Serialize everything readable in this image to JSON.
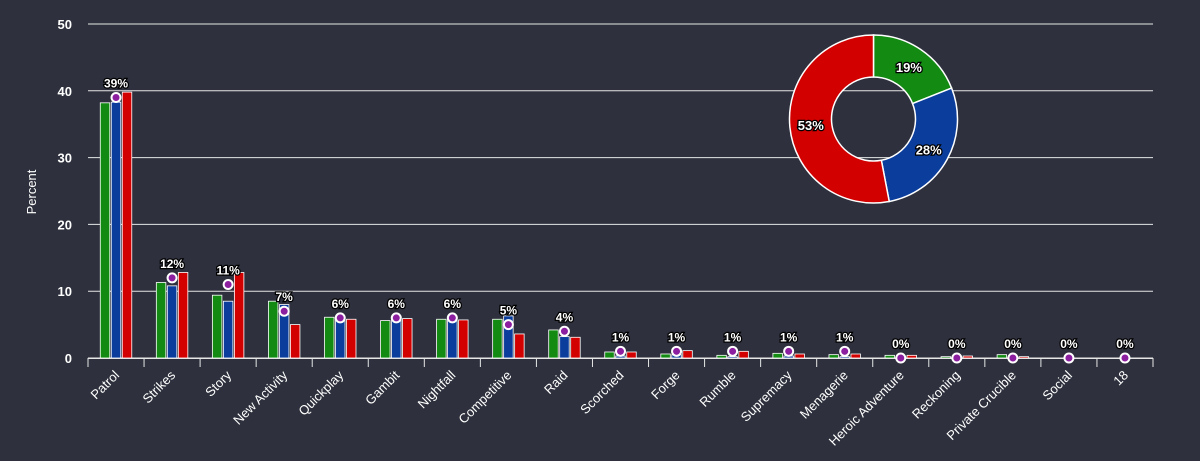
{
  "chart_data": {
    "type": "bar",
    "ylabel": "Percent",
    "ylim": [
      0,
      50
    ],
    "yticks": [
      "0",
      "10",
      "20",
      "30",
      "40",
      "50"
    ],
    "categories": [
      "Patrol",
      "Strikes",
      "Story",
      "New Activity",
      "Quickplay",
      "Gambit",
      "Nightfall",
      "Competitive",
      "Raid",
      "Scorched",
      "Forge",
      "Rumble",
      "Supremacy",
      "Menagerie",
      "Heroic Adventure",
      "Reckoning",
      "Private Crucible",
      "Social",
      "18"
    ],
    "series": [
      {
        "name": "green",
        "color": "#138b13",
        "values": [
          38.2,
          11.3,
          9.4,
          8.5,
          6.1,
          5.6,
          5.8,
          5.8,
          4.2,
          0.9,
          0.6,
          0.4,
          0.7,
          0.5,
          0.4,
          0.2,
          0.5,
          0,
          0
        ]
      },
      {
        "name": "blue",
        "color": "#0a3d9c",
        "values": [
          38.3,
          10.8,
          8.5,
          8.0,
          6.0,
          5.7,
          5.8,
          6.3,
          3.2,
          0.3,
          0.5,
          0.2,
          0.3,
          0.2,
          0.2,
          0.1,
          0.2,
          0,
          0
        ]
      },
      {
        "name": "red",
        "color": "#d30000",
        "values": [
          39.8,
          12.8,
          12.8,
          5.0,
          5.8,
          5.9,
          5.7,
          3.6,
          3.1,
          0.9,
          1.1,
          1.0,
          0.6,
          0.6,
          0.4,
          0.3,
          0.2,
          0,
          0
        ]
      }
    ],
    "average": {
      "marker_color": "#8c1fa0",
      "values": [
        39,
        12,
        11,
        7,
        6,
        6,
        6,
        5,
        4,
        1,
        1,
        1,
        1,
        1,
        0,
        0,
        0,
        0,
        0
      ],
      "labels": [
        "39%",
        "12%",
        "11%",
        "7%",
        "6%",
        "6%",
        "6%",
        "5%",
        "4%",
        "1%",
        "1%",
        "1%",
        "1%",
        "1%",
        "0%",
        "0%",
        "0%",
        "0%",
        "0%"
      ]
    },
    "pie": {
      "type": "pie",
      "slices": [
        {
          "label": "19%",
          "value": 19,
          "color": "#138b13"
        },
        {
          "label": "28%",
          "value": 28,
          "color": "#0a3d9c"
        },
        {
          "label": "53%",
          "value": 53,
          "color": "#d30000"
        }
      ]
    }
  }
}
